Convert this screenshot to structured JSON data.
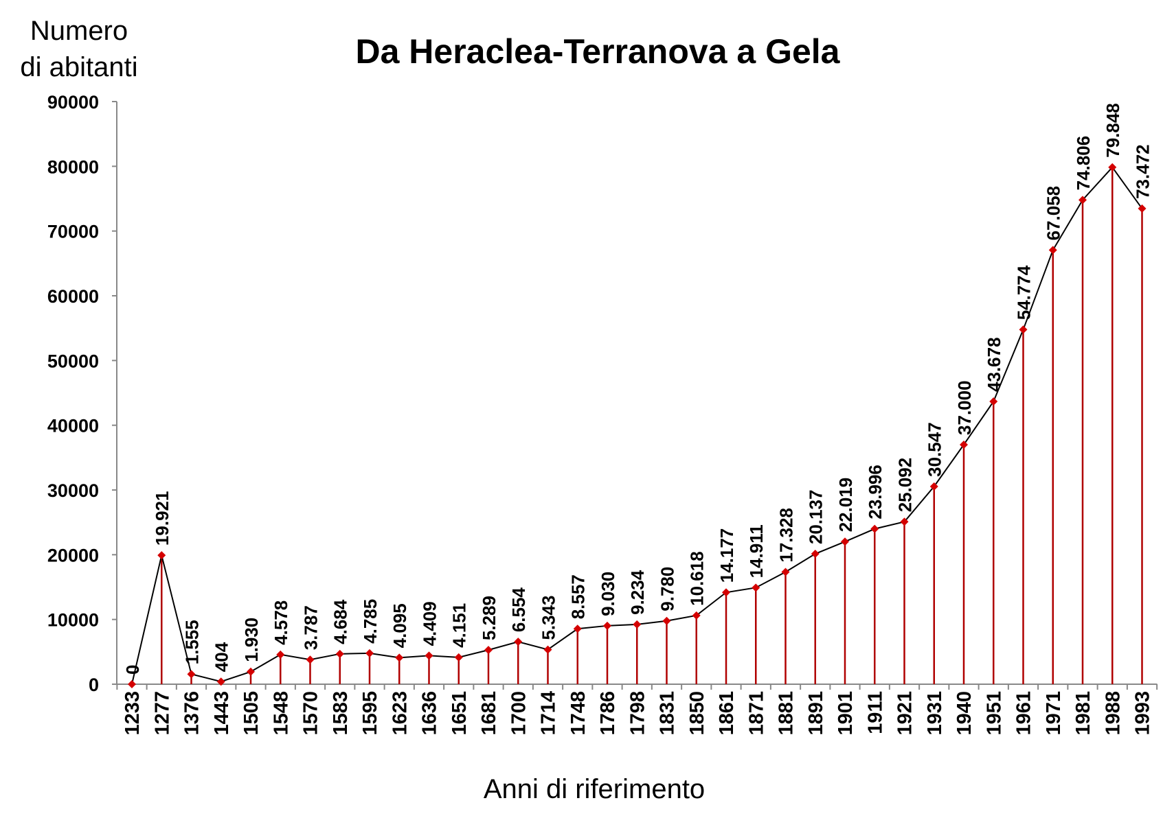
{
  "chart_data": {
    "type": "line",
    "title": "Da Heraclea-Terranova a Gela",
    "ylabel_line1": "Numero",
    "ylabel_line2": "di abitanti",
    "xlabel": "Anni di riferimento",
    "ylim": [
      0,
      90000
    ],
    "yticks": [
      "0",
      "10000",
      "20000",
      "30000",
      "40000",
      "50000",
      "60000",
      "70000",
      "80000",
      "90000"
    ],
    "grid": false,
    "colors": {
      "line": "#000000",
      "marker": "#d40000",
      "stem": "#b00000",
      "axis": "#888888"
    },
    "categories": [
      "1233",
      "1277",
      "1376",
      "1443",
      "1505",
      "1548",
      "1570",
      "1583",
      "1595",
      "1623",
      "1636",
      "1651",
      "1681",
      "1700",
      "1714",
      "1748",
      "1786",
      "1798",
      "1831",
      "1850",
      "1861",
      "1871",
      "1881",
      "1891",
      "1901",
      "1911",
      "1921",
      "1931",
      "1940",
      "1951",
      "1961",
      "1971",
      "1981",
      "1988",
      "1993"
    ],
    "values": [
      0,
      19921,
      1555,
      404,
      1930,
      4578,
      3787,
      4684,
      4785,
      4095,
      4409,
      4151,
      5289,
      6554,
      5343,
      8557,
      9030,
      9234,
      9780,
      10618,
      14177,
      14911,
      17328,
      20137,
      22019,
      23996,
      25092,
      30547,
      37000,
      43678,
      54774,
      67058,
      74806,
      79848,
      73472
    ],
    "data_labels": [
      "0",
      "19.921",
      "1.555",
      "404",
      "1.930",
      "4.578",
      "3.787",
      "4.684",
      "4.785",
      "4.095",
      "4.409",
      "4.151",
      "5.289",
      "6.554",
      "5.343",
      "8.557",
      "9.030",
      "9.234",
      "9.780",
      "10.618",
      "14.177",
      "14.911",
      "17.328",
      "20.137",
      "22.019",
      "23.996",
      "25.092",
      "30.547",
      "37.000",
      "43.678",
      "54.774",
      "67.058",
      "74.806",
      "79.848",
      "73.472"
    ]
  }
}
